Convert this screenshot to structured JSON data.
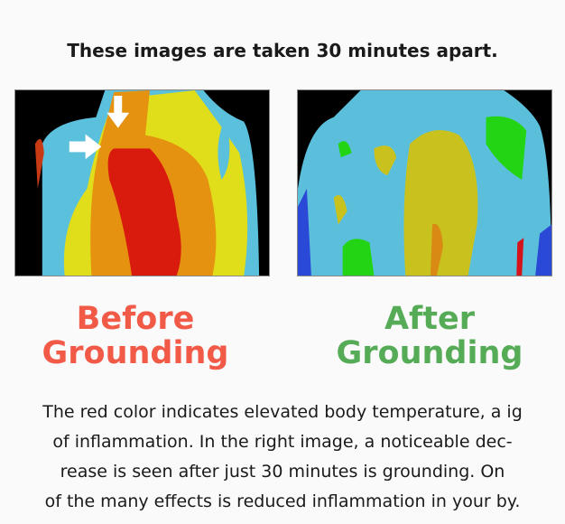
{
  "heading": "These images are taken 30 minutes apart.",
  "before": {
    "line1": "Before",
    "line2": "Grounding",
    "color": "#f25a48"
  },
  "after": {
    "line1": "After",
    "line2": "Grounding",
    "color": "#56ab57"
  },
  "body_lines": [
    "The red color indicates elevated body temperature, a ig",
    "of inflammation. In the right image, a noticeable dec-",
    "rease is seen after just 30 minutes is grounding. On",
    "of the many effects is reduced inflammation in your by."
  ],
  "icons": {
    "arrow_down": "arrow-down-icon",
    "arrow_right": "arrow-right-icon"
  }
}
